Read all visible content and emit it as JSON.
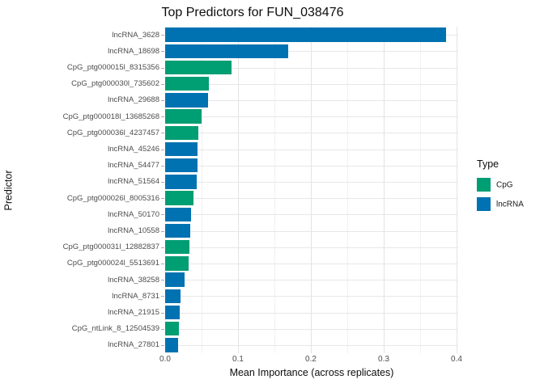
{
  "chart_data": {
    "type": "bar",
    "orientation": "horizontal",
    "title": "Top Predictors for FUN_038476",
    "xlabel": "Mean Importance (across replicates)",
    "ylabel": "Predictor",
    "xlim": [
      0,
      0.402
    ],
    "x_ticks": [
      0.0,
      0.1,
      0.2,
      0.3,
      0.4
    ],
    "x_tick_labels": [
      "0.0",
      "0.1",
      "0.2",
      "0.3",
      "0.4"
    ],
    "x_minor_ticks": [
      0.05,
      0.15,
      0.25,
      0.35
    ],
    "grid": true,
    "colors": {
      "CpG": "#009E73",
      "lncRNA": "#0072B2"
    },
    "legend": {
      "title": "Type",
      "position": "right",
      "entries": [
        {
          "label": "CpG",
          "color": "#009E73"
        },
        {
          "label": "lncRNA",
          "color": "#0072B2"
        }
      ]
    },
    "rows": [
      {
        "predictor": "lncRNA_3628",
        "type": "lncRNA",
        "value": 0.385
      },
      {
        "predictor": "lncRNA_18698",
        "type": "lncRNA",
        "value": 0.169
      },
      {
        "predictor": "CpG_ptg000015l_8315356",
        "type": "CpG",
        "value": 0.091
      },
      {
        "predictor": "CpG_ptg000030l_735602",
        "type": "CpG",
        "value": 0.06
      },
      {
        "predictor": "lncRNA_29688",
        "type": "lncRNA",
        "value": 0.059
      },
      {
        "predictor": "CpG_ptg000018l_13685268",
        "type": "CpG",
        "value": 0.05
      },
      {
        "predictor": "CpG_ptg000036l_4237457",
        "type": "CpG",
        "value": 0.046
      },
      {
        "predictor": "lncRNA_45246",
        "type": "lncRNA",
        "value": 0.044
      },
      {
        "predictor": "lncRNA_54477",
        "type": "lncRNA",
        "value": 0.044
      },
      {
        "predictor": "lncRNA_51564",
        "type": "lncRNA",
        "value": 0.043
      },
      {
        "predictor": "CpG_ptg000026l_8005316",
        "type": "CpG",
        "value": 0.039
      },
      {
        "predictor": "lncRNA_50170",
        "type": "lncRNA",
        "value": 0.036
      },
      {
        "predictor": "lncRNA_10558",
        "type": "lncRNA",
        "value": 0.034
      },
      {
        "predictor": "CpG_ptg000031l_12882837",
        "type": "CpG",
        "value": 0.033
      },
      {
        "predictor": "CpG_ptg000024l_5513691",
        "type": "CpG",
        "value": 0.032
      },
      {
        "predictor": "lncRNA_38258",
        "type": "lncRNA",
        "value": 0.027
      },
      {
        "predictor": "lncRNA_8731",
        "type": "lncRNA",
        "value": 0.021
      },
      {
        "predictor": "lncRNA_21915",
        "type": "lncRNA",
        "value": 0.02
      },
      {
        "predictor": "CpG_ntLink_8_12504539",
        "type": "CpG",
        "value": 0.019
      },
      {
        "predictor": "lncRNA_27801",
        "type": "lncRNA",
        "value": 0.018
      }
    ]
  }
}
